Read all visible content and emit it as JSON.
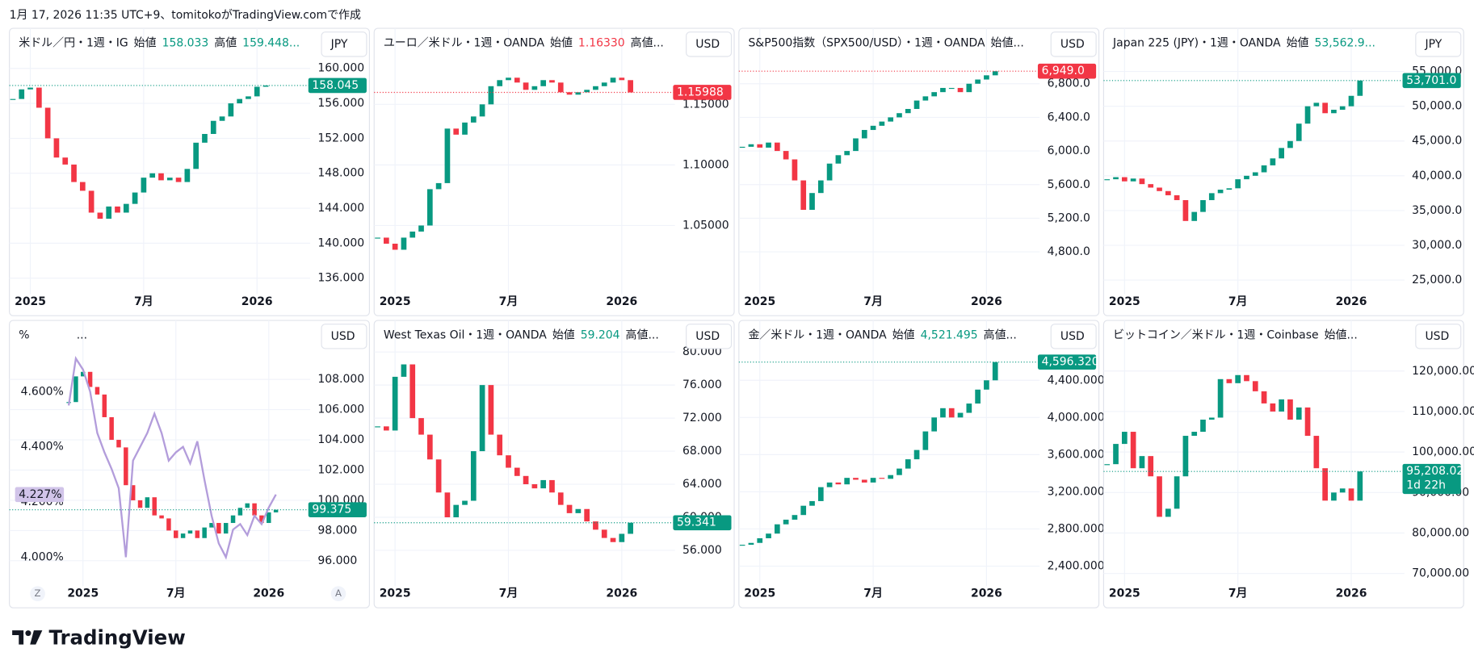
{
  "caption": "1月 17, 2026 11:35 UTC+9、tomitokoがTradingView.comで作成",
  "logo": "TradingView",
  "chart_data": [
    {
      "type": "candlestick",
      "header": [
        {
          "text": "米ドル／円・1週・IG",
          "color": "#131722"
        },
        {
          "text": "始値",
          "color": "#131722"
        },
        {
          "text": "158.033",
          "color": "#089981"
        },
        {
          "text": "高値",
          "color": "#131722"
        },
        {
          "text": "159.448...",
          "color": "#089981"
        }
      ],
      "currency": "JPY",
      "color_up": "#089981",
      "color_down": "#f23645",
      "xlim": [
        -0.4,
        34.1
      ],
      "xticks": [
        {
          "value": 2,
          "label": "2025"
        },
        {
          "value": 15,
          "label": "7月"
        },
        {
          "value": 28,
          "label": "2026"
        }
      ],
      "ylim": [
        134.5,
        161.9
      ],
      "yticks": [
        {
          "value": 136,
          "label": "136.000"
        },
        {
          "value": 140,
          "label": "140.000"
        },
        {
          "value": 144,
          "label": "144.000"
        },
        {
          "value": 148,
          "label": "148.000"
        },
        {
          "value": 152,
          "label": "152.000"
        },
        {
          "value": 156,
          "label": "156.000"
        },
        {
          "value": 160,
          "label": "160.000"
        }
      ],
      "values": [
        156.5,
        157.6,
        157.8,
        155.5,
        152.0,
        149.8,
        149.0,
        147.0,
        146.0,
        143.5,
        142.8,
        144.2,
        143.5,
        144.5,
        145.8,
        147.5,
        148.0,
        147.2,
        147.5,
        147.0,
        148.5,
        151.5,
        152.5,
        154.0,
        154.5,
        156.0,
        156.5,
        156.8,
        157.9,
        158.045
      ],
      "price_label": "158.045",
      "price_color": "#089981"
    },
    {
      "type": "candlestick",
      "header": [
        {
          "text": "ユーロ／米ドル・1週・OANDA",
          "color": "#131722"
        },
        {
          "text": "始値",
          "color": "#131722"
        },
        {
          "text": "1.16330",
          "color": "#f23645"
        },
        {
          "text": "高値...",
          "color": "#131722"
        }
      ],
      "currency": "USD",
      "color_up": "#089981",
      "color_down": "#f23645",
      "xlim": [
        -0.4,
        34.1
      ],
      "xticks": [
        {
          "value": 2,
          "label": "2025"
        },
        {
          "value": 15,
          "label": "7月"
        },
        {
          "value": 28,
          "label": "2026"
        }
      ],
      "ylim": [
        0.9957,
        1.1934
      ],
      "yticks": [
        {
          "value": 1.05,
          "label": "1.05000"
        },
        {
          "value": 1.1,
          "label": "1.10000"
        },
        {
          "value": 1.15,
          "label": "1.15000"
        }
      ],
      "values": [
        1.04,
        1.035,
        1.03,
        1.04,
        1.045,
        1.05,
        1.08,
        1.085,
        1.13,
        1.125,
        1.135,
        1.14,
        1.15,
        1.165,
        1.17,
        1.172,
        1.168,
        1.162,
        1.165,
        1.17,
        1.168,
        1.16,
        1.158,
        1.16,
        1.162,
        1.165,
        1.168,
        1.172,
        1.17,
        1.15988
      ],
      "price_label": "1.15988",
      "price_color": "#f23645"
    },
    {
      "type": "candlestick",
      "header": [
        {
          "text": "S&P500指数（SPX500/USD）・1週・OANDA",
          "color": "#131722"
        },
        {
          "text": "始値...",
          "color": "#131722"
        }
      ],
      "currency": "USD",
      "color_up": "#089981",
      "color_down": "#f23645",
      "xlim": [
        -0.4,
        34.1
      ],
      "xticks": [
        {
          "value": 2,
          "label": "2025"
        },
        {
          "value": 15,
          "label": "7月"
        },
        {
          "value": 28,
          "label": "2026"
        }
      ],
      "ylim": [
        4331,
        7180
      ],
      "yticks": [
        {
          "value": 4800,
          "label": "4,800.0"
        },
        {
          "value": 5200,
          "label": "5,200.0"
        },
        {
          "value": 5600,
          "label": "5,600.0"
        },
        {
          "value": 6000,
          "label": "6,000.0"
        },
        {
          "value": 6400,
          "label": "6,400.0"
        },
        {
          "value": 6800,
          "label": "6,800.0"
        }
      ],
      "values": [
        6050,
        6080,
        6040,
        6100,
        6000,
        5900,
        5650,
        5300,
        5500,
        5650,
        5850,
        5950,
        6000,
        6150,
        6250,
        6300,
        6350,
        6400,
        6450,
        6500,
        6600,
        6650,
        6700,
        6750,
        6750,
        6700,
        6800,
        6850,
        6900,
        6949
      ],
      "price_label": "6,949.0",
      "price_color": "#f23645"
    },
    {
      "type": "candlestick",
      "header": [
        {
          "text": "Japan 225 (JPY)・1週・OANDA",
          "color": "#131722"
        },
        {
          "text": "始値",
          "color": "#131722"
        },
        {
          "text": "53,562.9...",
          "color": "#089981"
        }
      ],
      "currency": "JPY",
      "color_up": "#089981",
      "color_down": "#f23645",
      "xlim": [
        -0.4,
        34.1
      ],
      "xticks": [
        {
          "value": 2,
          "label": "2025"
        },
        {
          "value": 15,
          "label": "7月"
        },
        {
          "value": 28,
          "label": "2026"
        }
      ],
      "ylim": [
        23385,
        57836
      ],
      "yticks": [
        {
          "value": 25000,
          "label": "25,000.0"
        },
        {
          "value": 30000,
          "label": "30,000.0"
        },
        {
          "value": 35000,
          "label": "35,000.0"
        },
        {
          "value": 40000,
          "label": "40,000.0"
        },
        {
          "value": 45000,
          "label": "45,000.0"
        },
        {
          "value": 50000,
          "label": "50,000.0"
        },
        {
          "value": 55000,
          "label": "55,000.0"
        }
      ],
      "values": [
        39500,
        39800,
        39200,
        39600,
        38800,
        38300,
        37800,
        37200,
        36500,
        33500,
        34800,
        36500,
        37500,
        38000,
        38200,
        39500,
        40000,
        40500,
        41500,
        42500,
        44000,
        45000,
        47500,
        50000,
        50500,
        49000,
        49500,
        50000,
        51500,
        53701
      ],
      "price_label": "53,701.0",
      "price_color": "#089981"
    },
    {
      "type": "candlestick",
      "header": [
        {
          "text": "%",
          "color": "#131722"
        },
        {
          "text": "...",
          "color": "#131722"
        }
      ],
      "currency": "USD",
      "color_up": "#089981",
      "color_down": "#f23645",
      "xlim": [
        -8.3,
        33.8
      ],
      "xticks": [
        {
          "value": 2,
          "label": "2025"
        },
        {
          "value": 15,
          "label": "7月"
        },
        {
          "value": 28,
          "label": "2026"
        }
      ],
      "ylim": [
        94.5,
        110.35
      ],
      "yticks": [
        {
          "value": 96,
          "label": "96.000"
        },
        {
          "value": 98,
          "label": "98.000"
        },
        {
          "value": 100,
          "label": "100.000"
        },
        {
          "value": 102,
          "label": "102.000"
        },
        {
          "value": 104,
          "label": "104.000"
        },
        {
          "value": 106,
          "label": "106.000"
        },
        {
          "value": 108,
          "label": "108.000"
        }
      ],
      "values": [
        106.5,
        108.2,
        108.5,
        107.5,
        107.0,
        105.5,
        104.0,
        103.5,
        101.0,
        100.0,
        99.5,
        100.2,
        99.0,
        98.8,
        98.0,
        97.5,
        97.8,
        98.0,
        97.5,
        98.2,
        98.5,
        97.8,
        98.5,
        99.0,
        99.5,
        99.8,
        99.0,
        98.5,
        99.2,
        99.375
      ],
      "price_label": "99.375",
      "price_color": "#089981",
      "line": {
        "axis": "y2",
        "color": "#b39ddb",
        "values": [
          4.55,
          4.72,
          4.68,
          4.6,
          4.45,
          4.38,
          4.32,
          4.25,
          4.0,
          4.35,
          4.4,
          4.45,
          4.52,
          4.45,
          4.35,
          4.38,
          4.4,
          4.34,
          4.42,
          4.28,
          4.15,
          4.05,
          4.0,
          4.1,
          4.12,
          4.08,
          4.15,
          4.12,
          4.18,
          4.227
        ],
        "price_label": "4.227%",
        "label_color": "#d1c4e9"
      },
      "y2lim": [
        3.905,
        4.773
      ],
      "y2ticks": [
        {
          "value": 4.0,
          "label": "4.000%"
        },
        {
          "value": 4.2,
          "label": "4.200%"
        },
        {
          "value": 4.4,
          "label": "4.400%"
        },
        {
          "value": 4.6,
          "label": "4.600%"
        }
      ],
      "buttons": [
        "Z",
        "A"
      ]
    },
    {
      "type": "candlestick",
      "header": [
        {
          "text": "West Texas Oil・1週・OANDA",
          "color": "#131722"
        },
        {
          "text": "始値",
          "color": "#131722"
        },
        {
          "text": "59.204",
          "color": "#089981"
        },
        {
          "text": "高値...",
          "color": "#131722"
        }
      ],
      "currency": "USD",
      "color_up": "#089981",
      "color_down": "#f23645",
      "xlim": [
        -0.4,
        34.1
      ],
      "xticks": [
        {
          "value": 2,
          "label": "2025"
        },
        {
          "value": 15,
          "label": "7月"
        },
        {
          "value": 28,
          "label": "2026"
        }
      ],
      "ylim": [
        52.0,
        80.98
      ],
      "yticks": [
        {
          "value": 56,
          "label": "56.000"
        },
        {
          "value": 60,
          "label": "60.000"
        },
        {
          "value": 64,
          "label": "64.000"
        },
        {
          "value": 68,
          "label": "68.000"
        },
        {
          "value": 72,
          "label": "72.000"
        },
        {
          "value": 76,
          "label": "76.000"
        },
        {
          "value": 80,
          "label": "80.000"
        }
      ],
      "values": [
        71.0,
        70.5,
        77.0,
        78.5,
        72.0,
        70.0,
        67.0,
        63.0,
        60.0,
        61.5,
        62.0,
        68.0,
        76.0,
        70.0,
        67.5,
        66.0,
        65.0,
        64.0,
        63.5,
        64.5,
        63.0,
        61.5,
        60.5,
        61.0,
        59.5,
        58.5,
        57.5,
        57.0,
        58.0,
        59.341
      ],
      "price_label": "59.341",
      "price_color": "#089981"
    },
    {
      "type": "candlestick",
      "header": [
        {
          "text": "金／米ドル・1週・OANDA",
          "color": "#131722"
        },
        {
          "text": "始値",
          "color": "#131722"
        },
        {
          "text": "4,521.495",
          "color": "#089981"
        },
        {
          "text": "高値...",
          "color": "#131722"
        }
      ],
      "currency": "USD",
      "color_up": "#089981",
      "color_down": "#f23645",
      "xlim": [
        -0.4,
        34.1
      ],
      "xticks": [
        {
          "value": 2,
          "label": "2025"
        },
        {
          "value": 15,
          "label": "7月"
        },
        {
          "value": 28,
          "label": "2026"
        }
      ],
      "ylim": [
        2214,
        4792
      ],
      "yticks": [
        {
          "value": 2400,
          "label": "2,400.000"
        },
        {
          "value": 2800,
          "label": "2,800.000"
        },
        {
          "value": 3200,
          "label": "3,200.000"
        },
        {
          "value": 3600,
          "label": "3,600.000"
        },
        {
          "value": 4000,
          "label": "4,000.000"
        },
        {
          "value": 4400,
          "label": "4,400.000"
        }
      ],
      "values": [
        2630,
        2650,
        2700,
        2750,
        2850,
        2900,
        2950,
        3050,
        3100,
        3250,
        3300,
        3280,
        3350,
        3330,
        3300,
        3350,
        3340,
        3380,
        3450,
        3550,
        3650,
        3850,
        4000,
        4100,
        4000,
        4050,
        4150,
        4300,
        4400,
        4596.32
      ],
      "price_label": "4,596.320",
      "price_color": "#089981"
    },
    {
      "type": "candlestick",
      "header": [
        {
          "text": "ビットコイン／米ドル・1週・Coinbase",
          "color": "#131722"
        },
        {
          "text": "始値...",
          "color": "#131722"
        }
      ],
      "currency": "USD",
      "color_up": "#089981",
      "color_down": "#f23645",
      "xlim": [
        -0.4,
        34.1
      ],
      "xticks": [
        {
          "value": 2,
          "label": "2025"
        },
        {
          "value": 15,
          "label": "7月"
        },
        {
          "value": 28,
          "label": "2026"
        }
      ],
      "ylim": [
        67560,
        126700
      ],
      "yticks": [
        {
          "value": 70000,
          "label": "70,000.00"
        },
        {
          "value": 80000,
          "label": "80,000.00"
        },
        {
          "value": 90000,
          "label": "90,000.00"
        },
        {
          "value": 100000,
          "label": "100,000.00"
        },
        {
          "value": 110000,
          "label": "110,000.00"
        },
        {
          "value": 120000,
          "label": "120,000.00"
        }
      ],
      "values": [
        97000,
        102000,
        105000,
        96000,
        99000,
        94000,
        84000,
        86000,
        94000,
        104000,
        105000,
        108000,
        108500,
        118000,
        117000,
        119000,
        117500,
        115000,
        112000,
        110000,
        113000,
        108000,
        111000,
        104000,
        96000,
        88000,
        90000,
        91000,
        88000,
        95208.02
      ],
      "price_label": "95,208.02",
      "countdown": "1d 22h",
      "price_color": "#089981"
    }
  ]
}
